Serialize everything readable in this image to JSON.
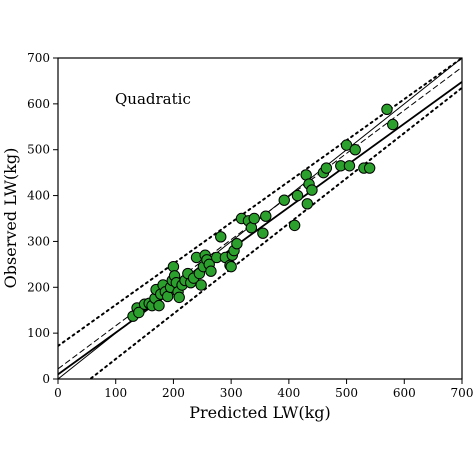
{
  "chart_data": {
    "type": "scatter",
    "xlabel": "Predicted LW(kg)",
    "ylabel": "Observed LW(kg)",
    "xlim": [
      0,
      700
    ],
    "ylim": [
      0,
      700
    ],
    "xticks": [
      "0",
      "100",
      "200",
      "300",
      "400",
      "500",
      "600",
      "700"
    ],
    "yticks": [
      "0",
      "100",
      "200",
      "300",
      "400",
      "500",
      "600",
      "700"
    ],
    "annotation": "Quadratic",
    "grid": false,
    "colors": {
      "points": "#2ca02c",
      "point_edge": "#000000",
      "lines": "#000000"
    },
    "series": [
      {
        "values": [
          [
            130,
            137
          ],
          [
            137,
            155
          ],
          [
            140,
            145
          ],
          [
            150,
            163
          ],
          [
            158,
            165
          ],
          [
            163,
            160
          ],
          [
            168,
            176
          ],
          [
            170,
            195
          ],
          [
            175,
            160
          ],
          [
            178,
            185
          ],
          [
            182,
            205
          ],
          [
            186,
            190
          ],
          [
            190,
            180
          ],
          [
            195,
            200
          ],
          [
            198,
            215
          ],
          [
            200,
            245
          ],
          [
            202,
            225
          ],
          [
            205,
            210
          ],
          [
            208,
            190
          ],
          [
            210,
            178
          ],
          [
            215,
            205
          ],
          [
            220,
            215
          ],
          [
            225,
            230
          ],
          [
            230,
            210
          ],
          [
            235,
            220
          ],
          [
            240,
            265
          ],
          [
            245,
            230
          ],
          [
            248,
            205
          ],
          [
            252,
            245
          ],
          [
            255,
            270
          ],
          [
            258,
            260
          ],
          [
            262,
            250
          ],
          [
            265,
            235
          ],
          [
            275,
            265
          ],
          [
            282,
            310
          ],
          [
            290,
            265
          ],
          [
            298,
            248
          ],
          [
            300,
            245
          ],
          [
            302,
            270
          ],
          [
            305,
            280
          ],
          [
            310,
            295
          ],
          [
            318,
            350
          ],
          [
            330,
            345
          ],
          [
            335,
            330
          ],
          [
            340,
            350
          ],
          [
            355,
            318
          ],
          [
            360,
            355
          ],
          [
            392,
            390
          ],
          [
            410,
            335
          ],
          [
            415,
            400
          ],
          [
            430,
            445
          ],
          [
            432,
            382
          ],
          [
            435,
            425
          ],
          [
            440,
            412
          ],
          [
            460,
            450
          ],
          [
            465,
            460
          ],
          [
            490,
            465
          ],
          [
            500,
            510
          ],
          [
            505,
            465
          ],
          [
            515,
            500
          ],
          [
            530,
            460
          ],
          [
            540,
            460
          ],
          [
            570,
            588
          ],
          [
            580,
            555
          ]
        ]
      }
    ],
    "reference_lines": [
      {
        "style": "solid",
        "points": [
          [
            0,
            10
          ],
          [
            700,
            648
          ]
        ]
      },
      {
        "style": "dashed",
        "points": [
          [
            0,
            22
          ],
          [
            700,
            680
          ]
        ]
      },
      {
        "style": "dotted",
        "points": [
          [
            0,
            72
          ],
          [
            700,
            700
          ]
        ]
      },
      {
        "style": "dotted",
        "points": [
          [
            0,
            -55
          ],
          [
            700,
            635
          ]
        ]
      },
      {
        "style": "solid-thin",
        "points": [
          [
            0,
            0
          ],
          [
            700,
            700
          ]
        ]
      }
    ]
  }
}
